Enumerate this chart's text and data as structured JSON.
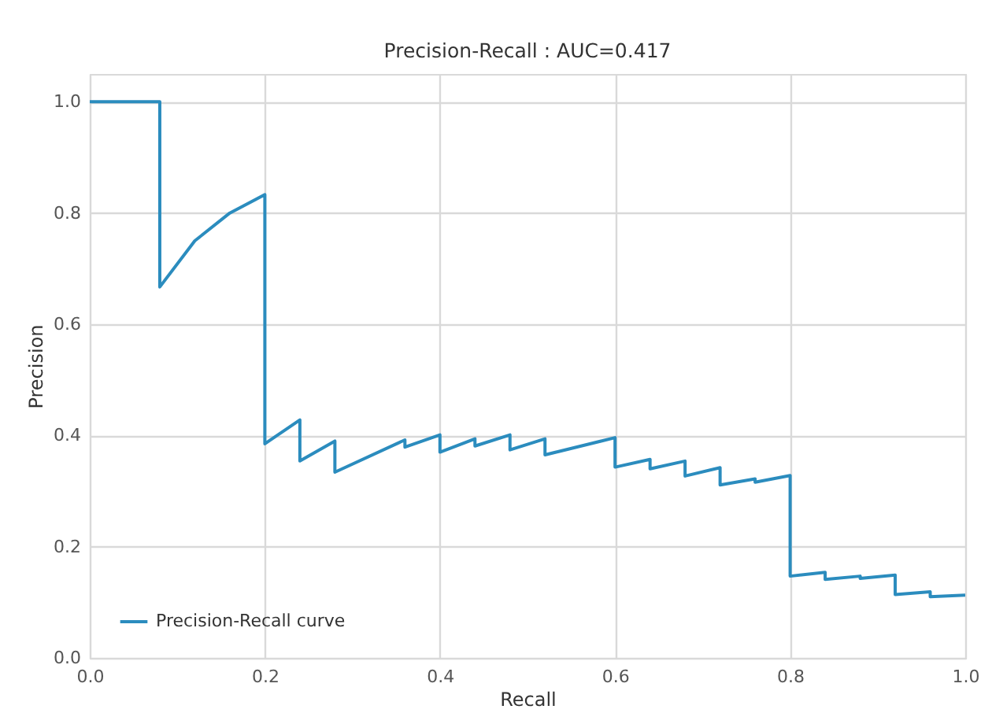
{
  "chart_data": {
    "type": "line",
    "title": "Precision-Recall : AUC=0.417",
    "xlabel": "Recall",
    "ylabel": "Precision",
    "x": [
      0,
      0.08,
      0.08,
      0.12,
      0.16,
      0.2,
      0.2,
      0.24,
      0.24,
      0.28,
      0.28,
      0.36,
      0.36,
      0.4,
      0.4,
      0.44,
      0.44,
      0.48,
      0.48,
      0.52,
      0.52,
      0.6,
      0.6,
      0.64,
      0.64,
      0.68,
      0.68,
      0.72,
      0.72,
      0.76,
      0.76,
      0.8,
      0.8,
      0.84,
      0.84,
      0.88,
      0.88,
      0.92,
      0.92,
      0.96,
      0.96,
      1.0
    ],
    "series": [
      {
        "name": "Precision-Recall curve",
        "color": "#2b8cbe",
        "values": [
          1,
          1,
          0.667,
          0.75,
          0.8,
          0.833,
          0.385,
          0.428,
          0.354,
          0.39,
          0.334,
          0.392,
          0.379,
          0.401,
          0.37,
          0.394,
          0.381,
          0.401,
          0.374,
          0.394,
          0.365,
          0.396,
          0.343,
          0.357,
          0.34,
          0.354,
          0.327,
          0.342,
          0.311,
          0.322,
          0.316,
          0.328,
          0.147,
          0.154,
          0.141,
          0.147,
          0.143,
          0.149,
          0.114,
          0.119,
          0.11,
          0.113
        ]
      }
    ],
    "xlim": [
      0,
      1
    ],
    "ylim": [
      0,
      1.05
    ],
    "xticks": [
      {
        "value": 0,
        "label": "0.0"
      },
      0.2,
      0.4,
      0.6,
      0.8,
      {
        "value": 1,
        "label": "1.0"
      }
    ],
    "yticks": [
      {
        "value": 0,
        "label": "0.0"
      },
      0.2,
      0.4,
      0.6,
      0.8,
      {
        "value": 1,
        "label": "1.0"
      }
    ],
    "grid": true,
    "legend": "bottom left",
    "marker": "none",
    "line_style": "solid"
  }
}
